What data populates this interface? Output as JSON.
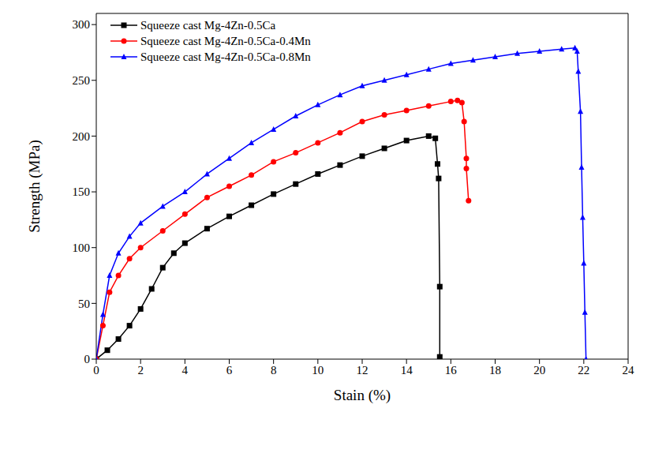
{
  "chart_data": {
    "type": "line",
    "x_label": "Stain (%)",
    "y_label": "Strength (MPa)",
    "xlim": [
      0,
      24
    ],
    "xticks": [
      0,
      2,
      4,
      6,
      8,
      10,
      12,
      14,
      16,
      18,
      20,
      22,
      24
    ],
    "ylim": [
      0,
      310
    ],
    "yticks": [
      0,
      50,
      100,
      150,
      200,
      250,
      300
    ],
    "grid": false,
    "legend": "upper left",
    "series": [
      {
        "name": "Squeeze cast Mg-4Zn-0.5Ca",
        "color": "#000000",
        "marker": "square",
        "x": [
          0,
          0.5,
          1,
          1.5,
          2,
          2.5,
          3,
          3.5,
          4,
          5,
          6,
          7,
          8,
          9,
          10,
          11,
          12,
          13,
          14,
          15,
          15.3,
          15.4,
          15.45,
          15.5,
          15.5
        ],
        "values": [
          0,
          8,
          18,
          30,
          45,
          63,
          82,
          95,
          104,
          117,
          128,
          138,
          148,
          157,
          166,
          174,
          182,
          189,
          196,
          200,
          198,
          175,
          162,
          65,
          2
        ]
      },
      {
        "name": "Squeeze cast Mg-4Zn-0.5Ca-0.4Mn",
        "color": "#ff0000",
        "marker": "circle",
        "x": [
          0,
          0.3,
          0.6,
          1,
          1.5,
          2,
          3,
          4,
          5,
          6,
          7,
          8,
          9,
          10,
          11,
          12,
          13,
          14,
          15,
          16,
          16.3,
          16.5,
          16.6,
          16.7,
          16.7,
          16.8
        ],
        "values": [
          0,
          30,
          60,
          75,
          90,
          100,
          115,
          130,
          145,
          155,
          165,
          177,
          185,
          194,
          203,
          213,
          219,
          223,
          227,
          231,
          232,
          230,
          213,
          180,
          171,
          142
        ]
      },
      {
        "name": "Squeeze cast Mg-4Zn-0.5Ca-0.8Mn",
        "color": "#0000ff",
        "marker": "triangle",
        "x": [
          0,
          0.3,
          0.6,
          1,
          1.5,
          2,
          3,
          4,
          5,
          6,
          7,
          8,
          9,
          10,
          11,
          12,
          13,
          14,
          15,
          16,
          17,
          18,
          19,
          20,
          21,
          21.6,
          21.7,
          21.75,
          21.85,
          21.9,
          21.95,
          22.0,
          22.05,
          22.1
        ],
        "values": [
          0,
          40,
          75,
          95,
          110,
          122,
          137,
          150,
          166,
          180,
          194,
          206,
          218,
          228,
          237,
          245,
          250,
          255,
          260,
          265,
          268,
          271,
          274,
          276,
          278,
          279,
          276,
          258,
          222,
          172,
          127,
          86,
          42,
          0
        ]
      }
    ]
  }
}
